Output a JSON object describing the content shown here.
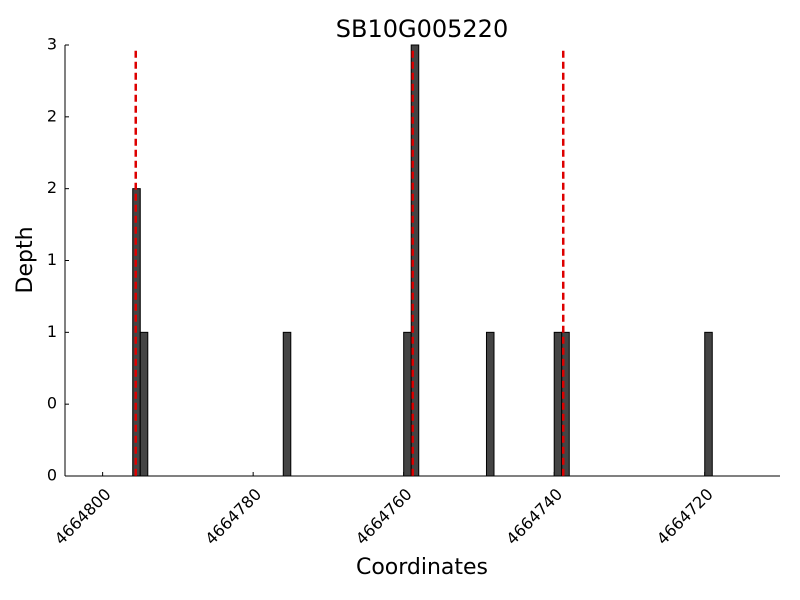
{
  "chart_data": {
    "type": "bar",
    "title": "SB10G005220",
    "x_label": "Coordinates",
    "y_label": "Depth",
    "x": [
      4664795.5,
      4664794.5,
      4664775.5,
      4664759.5,
      4664758.5,
      4664748.5,
      4664739.5,
      4664738.5,
      4664719.5
    ],
    "values": [
      2,
      1,
      1,
      1,
      3,
      1,
      1,
      1,
      1
    ],
    "bar_width": 1,
    "color": "#444444",
    "xlim": [
      4664805,
      4664710
    ],
    "xticks": [
      4664800,
      4664780,
      4664760,
      4664740,
      4664720
    ],
    "ylim": [
      0,
      3
    ],
    "yticks": [
      0,
      {
        "value": 0.5,
        "label": "0"
      },
      1,
      {
        "value": 1.5,
        "label": "1"
      },
      2,
      {
        "value": 2.5,
        "label": "2"
      },
      3
    ],
    "vlines": {
      "x": [
        4664795.6,
        4664758.8,
        4664738.8
      ],
      "top": 2.96,
      "color": "#dd0000"
    }
  }
}
